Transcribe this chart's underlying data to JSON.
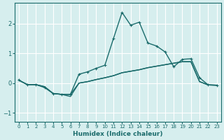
{
  "xlabel": "Humidex (Indice chaleur)",
  "ylabel": "",
  "background_color": "#d6eeee",
  "grid_color": "#ffffff",
  "line_color": "#1a6b6b",
  "xlim": [
    -0.5,
    23.5
  ],
  "ylim": [
    -1.3,
    2.7
  ],
  "yticks": [
    -1,
    0,
    1,
    2
  ],
  "xticks": [
    0,
    1,
    2,
    3,
    4,
    5,
    6,
    7,
    8,
    9,
    10,
    11,
    12,
    13,
    14,
    15,
    16,
    17,
    18,
    19,
    20,
    21,
    22,
    23
  ],
  "line1_x": [
    0,
    1,
    2,
    3,
    4,
    5,
    6,
    7,
    8,
    9,
    10,
    11,
    12,
    13,
    14,
    15,
    16,
    17,
    18,
    19,
    20,
    21,
    22,
    23
  ],
  "line1_y": [
    0.1,
    -0.05,
    -0.05,
    -0.15,
    -0.35,
    -0.38,
    -0.38,
    0.3,
    0.38,
    0.5,
    0.6,
    1.5,
    2.38,
    1.95,
    2.05,
    1.35,
    1.25,
    1.05,
    0.55,
    0.8,
    0.82,
    0.18,
    -0.06,
    -0.07
  ],
  "line2_x": [
    0,
    1,
    2,
    3,
    4,
    5,
    6,
    7,
    8,
    9,
    10,
    11,
    12,
    13,
    14,
    15,
    16,
    17,
    18,
    19,
    20,
    21,
    22,
    23
  ],
  "line2_y": [
    0.1,
    -0.05,
    -0.05,
    -0.12,
    -0.35,
    -0.38,
    -0.38,
    0.0,
    0.05,
    0.12,
    0.18,
    0.25,
    0.35,
    0.4,
    0.45,
    0.52,
    0.57,
    0.62,
    0.67,
    0.72,
    0.72,
    0.05,
    -0.06,
    -0.07
  ],
  "line3_x": [
    0,
    1,
    2,
    3,
    4,
    5,
    6,
    7,
    8,
    9,
    10,
    11,
    12,
    13,
    14,
    15,
    16,
    17,
    18,
    19,
    20,
    21,
    22,
    23
  ],
  "line3_y": [
    0.1,
    -0.05,
    -0.05,
    -0.12,
    -0.35,
    -0.38,
    -0.45,
    0.0,
    0.05,
    0.12,
    0.18,
    0.25,
    0.35,
    0.4,
    0.45,
    0.52,
    0.57,
    0.62,
    0.67,
    0.72,
    0.72,
    0.05,
    -0.06,
    -0.07
  ]
}
